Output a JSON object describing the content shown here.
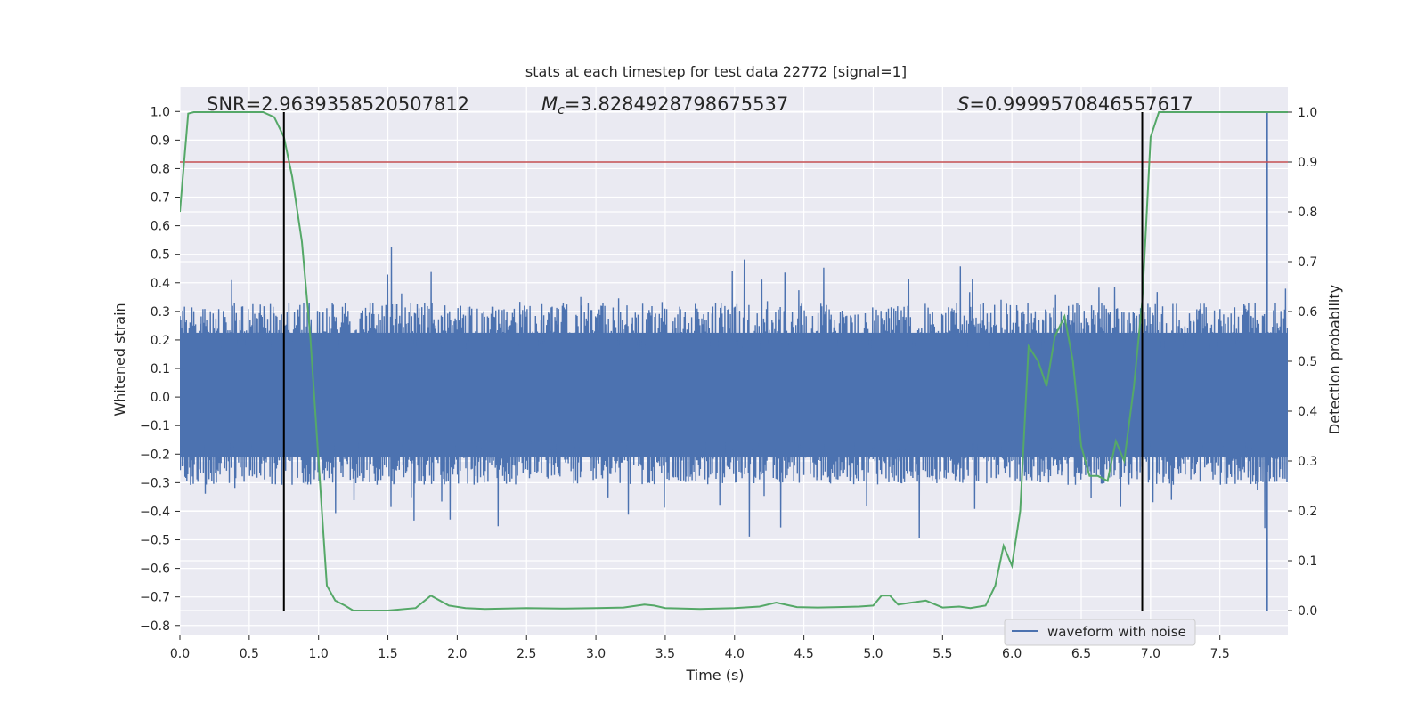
{
  "chart_data": {
    "type": "line",
    "title": "stats at each timestep for test data 22772 [signal=1]",
    "xlabel": "Time (s)",
    "ylabel": "Whitened strain",
    "y2label": "Detection probability",
    "xlim": [
      0.0,
      7.99
    ],
    "ylim": [
      -0.835,
      1.085
    ],
    "y2lim": [
      -0.05,
      1.05
    ],
    "x_ticks": [
      "0.0",
      "0.5",
      "1.0",
      "1.5",
      "2.0",
      "2.5",
      "3.0",
      "3.5",
      "4.0",
      "4.5",
      "5.0",
      "5.5",
      "6.0",
      "6.5",
      "7.0",
      "7.5"
    ],
    "y_ticks": [
      "1.0",
      "0.9",
      "0.8",
      "0.7",
      "0.6",
      "0.5",
      "0.4",
      "0.3",
      "0.2",
      "0.1",
      "0.0",
      "−0.1",
      "−0.2",
      "−0.3",
      "−0.4",
      "−0.5",
      "−0.6",
      "−0.7",
      "−0.8"
    ],
    "y2_ticks": [
      "1.0",
      "0.9",
      "0.8",
      "0.7",
      "0.6",
      "0.5",
      "0.4",
      "0.3",
      "0.2",
      "0.1",
      "0.0"
    ],
    "grid": true,
    "legend": {
      "location": "lower-right",
      "entries": [
        "waveform with noise"
      ]
    },
    "annotations": {
      "snr": "SNR=2.9639358520507812",
      "mc_symbol": "M",
      "mc_sub": "c",
      "mc_value": "=3.8284928798675537",
      "s_symbol": "S",
      "s_value": "=0.9999570846557617"
    },
    "colors": {
      "waveform": "#4c72b0",
      "probability": "#55a868",
      "threshold": "#c44e52",
      "markers": "#000000",
      "plot_background": "#eaeaf2",
      "grid": "#ffffff"
    },
    "waveform_envelope": {
      "x_range": [
        0.0,
        7.99
      ],
      "typical_upper": 0.3,
      "typical_lower": -0.28,
      "peak_max": {
        "x": 7.84,
        "y": 1.0
      },
      "peak_min": {
        "x": 7.84,
        "y": -0.75
      }
    },
    "threshold_probability": 0.9,
    "vertical_markers_x": [
      0.75,
      6.94
    ],
    "series": [
      {
        "name": "waveform with noise",
        "note": "dense noisy strain trace, approx. ±0.3 with spikes"
      },
      {
        "axis": "right",
        "x": [
          0.0,
          0.06,
          0.1,
          0.2,
          0.4,
          0.6,
          0.68,
          0.75,
          0.81,
          0.88,
          0.94,
          1.0,
          1.06,
          1.12,
          1.19,
          1.25,
          1.31,
          1.5,
          1.7,
          1.81,
          1.94,
          2.06,
          2.2,
          2.5,
          2.75,
          3.0,
          3.2,
          3.35,
          3.42,
          3.5,
          3.75,
          4.0,
          4.18,
          4.3,
          4.45,
          4.6,
          4.75,
          4.9,
          5.0,
          5.06,
          5.12,
          5.18,
          5.25,
          5.38,
          5.5,
          5.62,
          5.7,
          5.81,
          5.88,
          5.94,
          6.0,
          6.06,
          6.12,
          6.19,
          6.25,
          6.31,
          6.38,
          6.44,
          6.5,
          6.56,
          6.62,
          6.69,
          6.75,
          6.81,
          6.88,
          6.94,
          7.0,
          7.06,
          7.12,
          7.5,
          7.99
        ],
        "values": [
          0.8,
          0.997,
          1.0,
          1.0,
          1.0,
          1.0,
          0.99,
          0.95,
          0.87,
          0.74,
          0.55,
          0.3,
          0.05,
          0.02,
          0.01,
          0.0,
          0.0,
          0.0,
          0.005,
          0.03,
          0.01,
          0.005,
          0.003,
          0.005,
          0.004,
          0.005,
          0.006,
          0.012,
          0.01,
          0.005,
          0.003,
          0.005,
          0.008,
          0.016,
          0.007,
          0.006,
          0.007,
          0.008,
          0.01,
          0.03,
          0.03,
          0.012,
          0.015,
          0.02,
          0.006,
          0.008,
          0.005,
          0.01,
          0.05,
          0.13,
          0.09,
          0.2,
          0.53,
          0.5,
          0.45,
          0.55,
          0.59,
          0.5,
          0.33,
          0.27,
          0.27,
          0.26,
          0.34,
          0.3,
          0.45,
          0.62,
          0.95,
          1.0,
          1.0,
          1.0,
          1.0
        ]
      }
    ]
  }
}
